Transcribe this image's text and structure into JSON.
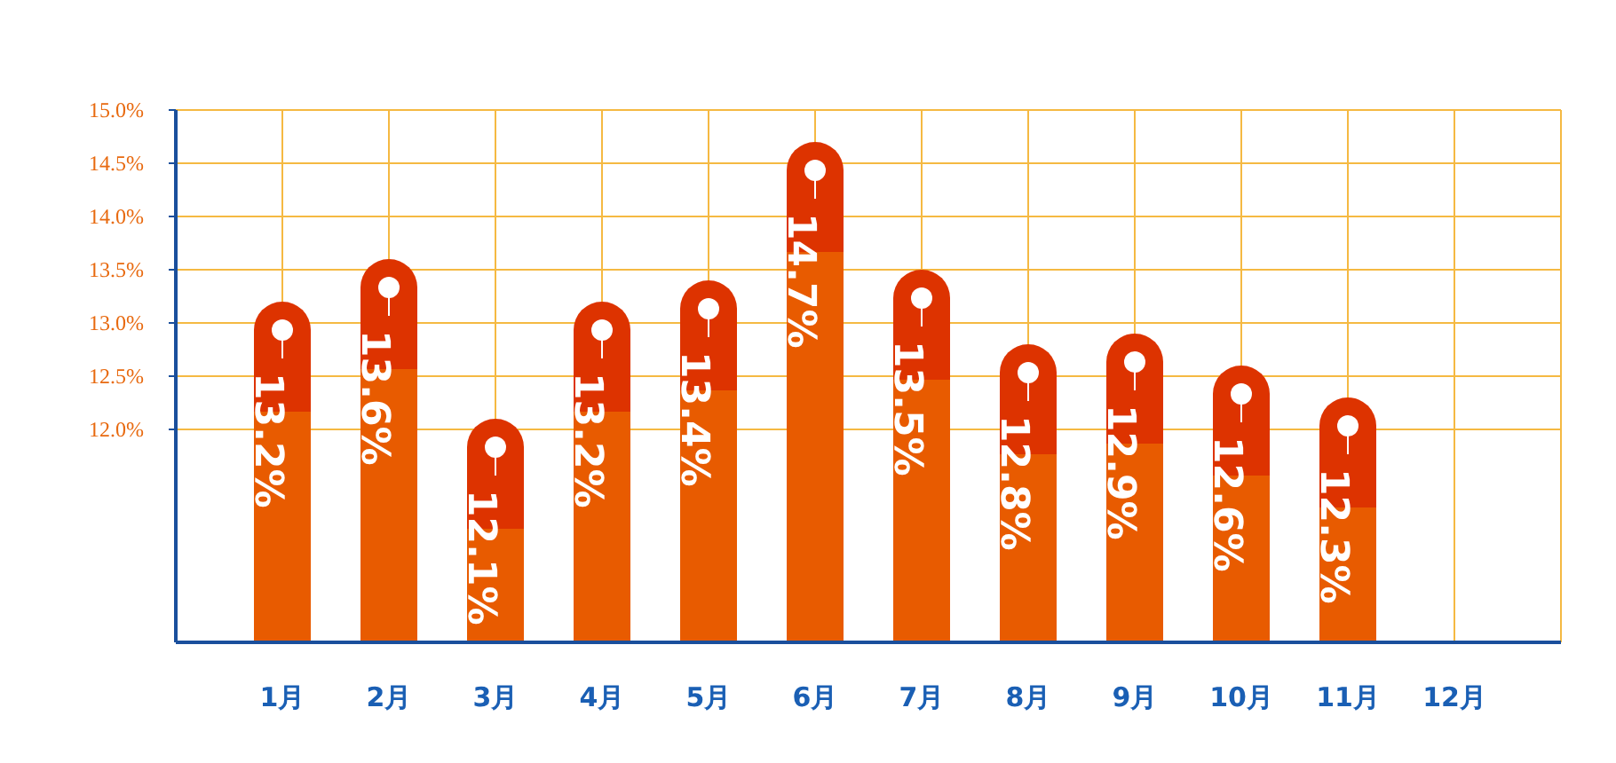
{
  "chart_data": {
    "type": "bar",
    "categories": [
      "1月",
      "2月",
      "3月",
      "4月",
      "5月",
      "6月",
      "7月",
      "8月",
      "9月",
      "10月",
      "11月",
      "12月"
    ],
    "values": [
      13.2,
      13.6,
      12.1,
      13.2,
      13.4,
      14.7,
      13.5,
      12.8,
      12.9,
      12.6,
      12.3,
      null
    ],
    "value_labels": [
      "13.2%",
      "13.6%",
      "12.1%",
      "13.2%",
      "13.4%",
      "14.7%",
      "13.5%",
      "12.8%",
      "12.9%",
      "12.6%",
      "12.3%",
      null
    ],
    "color": "#e85b00",
    "ylim": [
      10,
      15
    ],
    "yticks": [
      {
        "value": 12,
        "label": "12.0%"
      },
      {
        "value": 12.5,
        "label": "12.5%"
      },
      {
        "value": 13,
        "label": "13.0%"
      },
      {
        "value": 13.5,
        "label": "13.5%"
      },
      {
        "value": 14,
        "label": "14.0%"
      },
      {
        "value": 14.5,
        "label": "14.5%"
      },
      {
        "value": 15,
        "label": "15.0%"
      }
    ],
    "grid": true
  }
}
